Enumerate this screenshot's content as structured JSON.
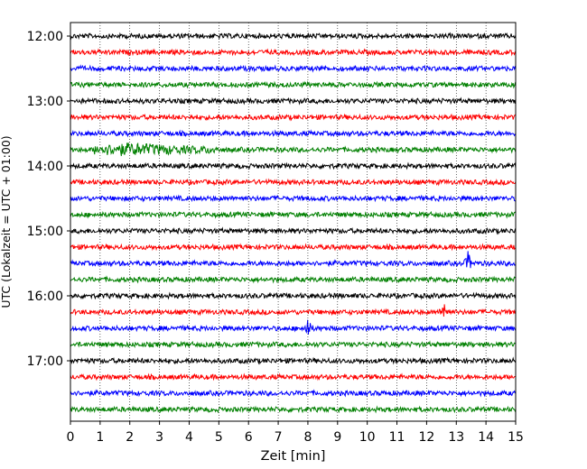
{
  "chart_data": {
    "type": "line",
    "title": "",
    "xlabel": "Zeit  [min]",
    "ylabel": "UTC (Lokalzeit = UTC + 01:00)",
    "xlim": [
      0,
      15
    ],
    "x_ticks": [
      "0",
      "1",
      "2",
      "3",
      "4",
      "5",
      "6",
      "7",
      "8",
      "9",
      "10",
      "11",
      "12",
      "13",
      "14",
      "15"
    ],
    "y_ticks": [
      {
        "label": "12:00",
        "trace": 0
      },
      {
        "label": "13:00",
        "trace": 4
      },
      {
        "label": "14:00",
        "trace": 8
      },
      {
        "label": "15:00",
        "trace": 12
      },
      {
        "label": "16:00",
        "trace": 16
      },
      {
        "label": "17:00",
        "trace": 20
      }
    ],
    "grid": "vertical dotted",
    "trace_interval_minutes": 15,
    "trace_count": 24,
    "trace_colors": [
      "#000000",
      "#ff0000",
      "#0000ff",
      "#008000"
    ],
    "events": [
      {
        "trace": 7,
        "x_start": 0.8,
        "x_end": 5.0,
        "peak_x": 2.0,
        "kind": "tremor"
      },
      {
        "trace": 18,
        "x": 8.0,
        "kind": "spike"
      },
      {
        "trace": 17,
        "x": 12.6,
        "kind": "spike"
      },
      {
        "trace": 14,
        "x": 13.4,
        "kind": "spike"
      }
    ]
  }
}
